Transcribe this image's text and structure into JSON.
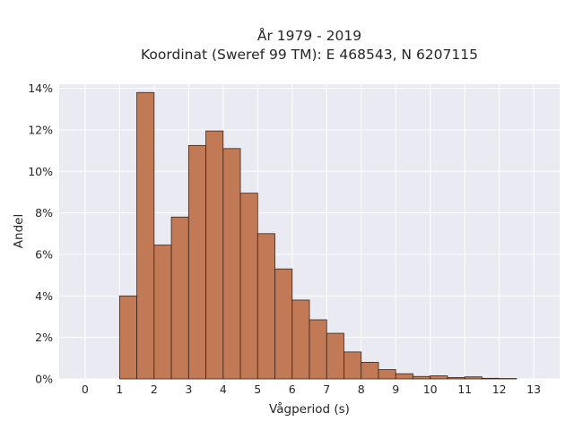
{
  "chart_data": {
    "type": "bar",
    "title_lines": [
      "År 1979 - 2019",
      "Koordinat (Sweref 99 TM): E 468543, N 6207115"
    ],
    "xlabel": "Vågperiod (s)",
    "ylabel": "Andel",
    "xlim": [
      -0.75,
      13.75
    ],
    "ylim": [
      0,
      14.2
    ],
    "x_ticks": [
      0,
      1,
      2,
      3,
      4,
      5,
      6,
      7,
      8,
      9,
      10,
      11,
      12,
      13
    ],
    "x_tick_labels": [
      "0",
      "1",
      "2",
      "3",
      "4",
      "5",
      "6",
      "7",
      "8",
      "9",
      "10",
      "11",
      "12",
      "13"
    ],
    "y_ticks": [
      0,
      2,
      4,
      6,
      8,
      10,
      12,
      14
    ],
    "y_tick_labels": [
      "0%",
      "2%",
      "4%",
      "6%",
      "8%",
      "10%",
      "12%",
      "14%"
    ],
    "grid": true,
    "bin_width": 0.5,
    "bins": [
      {
        "x0": 1.0,
        "value": 4.0
      },
      {
        "x0": 1.5,
        "value": 13.8
      },
      {
        "x0": 2.0,
        "value": 6.45
      },
      {
        "x0": 2.5,
        "value": 7.8
      },
      {
        "x0": 3.0,
        "value": 11.25
      },
      {
        "x0": 3.5,
        "value": 11.95
      },
      {
        "x0": 4.0,
        "value": 11.1
      },
      {
        "x0": 4.5,
        "value": 8.95
      },
      {
        "x0": 5.0,
        "value": 7.0
      },
      {
        "x0": 5.5,
        "value": 5.3
      },
      {
        "x0": 6.0,
        "value": 3.8
      },
      {
        "x0": 6.5,
        "value": 2.85
      },
      {
        "x0": 7.0,
        "value": 2.2
      },
      {
        "x0": 7.5,
        "value": 1.3
      },
      {
        "x0": 8.0,
        "value": 0.8
      },
      {
        "x0": 8.5,
        "value": 0.45
      },
      {
        "x0": 9.0,
        "value": 0.25
      },
      {
        "x0": 9.5,
        "value": 0.12
      },
      {
        "x0": 10.0,
        "value": 0.15
      },
      {
        "x0": 10.5,
        "value": 0.07
      },
      {
        "x0": 11.0,
        "value": 0.1
      },
      {
        "x0": 11.5,
        "value": 0.03
      },
      {
        "x0": 12.0,
        "value": 0.02
      }
    ],
    "colors": {
      "bar_fill": "#c17a55",
      "bar_edge": "#3d2418",
      "plot_background": "#eaeaf2",
      "grid": "#ffffff"
    }
  }
}
